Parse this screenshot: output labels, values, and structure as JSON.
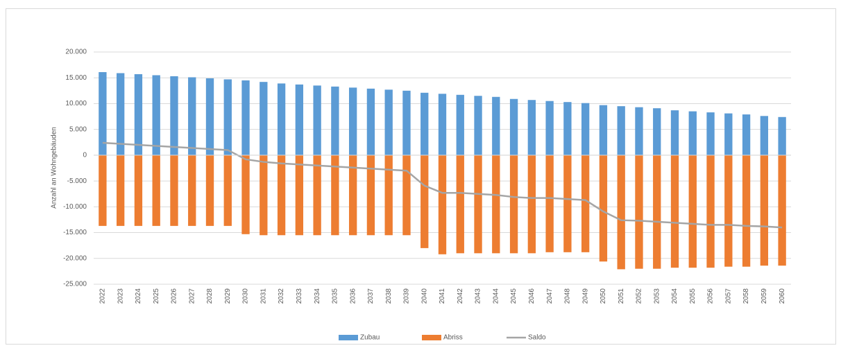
{
  "chart_data": {
    "type": "bar",
    "y_label": "Anzahl an Wohngebäuden",
    "categories": [
      "2022",
      "2023",
      "2024",
      "2025",
      "2026",
      "2027",
      "2028",
      "2029",
      "2030",
      "2031",
      "2032",
      "2033",
      "2034",
      "2035",
      "2036",
      "2037",
      "2038",
      "2039",
      "2040",
      "2041",
      "2042",
      "2043",
      "2044",
      "2045",
      "2046",
      "2047",
      "2048",
      "2049",
      "2050",
      "2051",
      "2052",
      "2053",
      "2054",
      "2055",
      "2056",
      "2057",
      "2058",
      "2059",
      "2060"
    ],
    "series": [
      {
        "name": "Zubau",
        "type": "bar",
        "color": "#5b9bd5",
        "values": [
          16100,
          15900,
          15700,
          15500,
          15300,
          15100,
          14900,
          14700,
          14500,
          14200,
          13900,
          13700,
          13500,
          13300,
          13100,
          12900,
          12700,
          12500,
          12100,
          11900,
          11700,
          11500,
          11300,
          10900,
          10700,
          10500,
          10300,
          10100,
          9700,
          9500,
          9300,
          9100,
          8700,
          8500,
          8300,
          8100,
          7900,
          7600,
          7400
        ]
      },
      {
        "name": "Abriss",
        "type": "bar",
        "color": "#ed7d31",
        "values": [
          -13700,
          -13700,
          -13700,
          -13700,
          -13700,
          -13700,
          -13700,
          -13700,
          -15300,
          -15500,
          -15500,
          -15500,
          -15500,
          -15500,
          -15500,
          -15500,
          -15500,
          -15500,
          -18000,
          -19200,
          -19000,
          -19000,
          -19000,
          -19000,
          -19000,
          -18800,
          -18800,
          -18800,
          -20600,
          -22100,
          -22000,
          -22000,
          -21800,
          -21800,
          -21800,
          -21600,
          -21600,
          -21400,
          -21400
        ]
      },
      {
        "name": "Saldo",
        "type": "line",
        "color": "#a5a5a5",
        "values": [
          2400,
          2200,
          2000,
          1800,
          1600,
          1400,
          1200,
          1000,
          -800,
          -1300,
          -1600,
          -1800,
          -2000,
          -2200,
          -2400,
          -2600,
          -2800,
          -3000,
          -5900,
          -7300,
          -7300,
          -7500,
          -7700,
          -8100,
          -8300,
          -8300,
          -8500,
          -8700,
          -10900,
          -12600,
          -12700,
          -12900,
          -13100,
          -13300,
          -13500,
          -13500,
          -13700,
          -13800,
          -14000
        ]
      }
    ],
    "ylim": [
      -25000,
      20000
    ],
    "yticks": [
      {
        "value": -25000,
        "label": "-25.000"
      },
      {
        "value": -20000,
        "label": "-20.000"
      },
      {
        "value": -15000,
        "label": "-15.000"
      },
      {
        "value": -10000,
        "label": "-10.000"
      },
      {
        "value": -5000,
        "label": "-5.000"
      },
      0,
      {
        "value": 5000,
        "label": "5.000"
      },
      {
        "value": 10000,
        "label": "10.000"
      },
      {
        "value": 15000,
        "label": "15.000"
      },
      {
        "value": 20000,
        "label": "20.000"
      }
    ],
    "grid": true,
    "legend": "bottom"
  }
}
